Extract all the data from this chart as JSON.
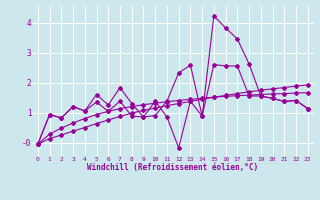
{
  "bg_color": "#cce8ec",
  "line_color": "#990099",
  "grid_color": "#b0d8dc",
  "xlabel": "Windchill (Refroidissement éolien,°C)",
  "ytick_vals": [
    0,
    1,
    2,
    3,
    4
  ],
  "ytick_labels": [
    "-0",
    "1",
    "2",
    "3",
    "4"
  ],
  "ylim": [
    -0.45,
    4.55
  ],
  "xlim": [
    -0.5,
    23.5
  ],
  "xticks": [
    0,
    1,
    2,
    3,
    4,
    5,
    6,
    7,
    8,
    9,
    10,
    11,
    12,
    13,
    14,
    15,
    16,
    17,
    18,
    19,
    20,
    21,
    22,
    23
  ],
  "series1_x": [
    0,
    1,
    2,
    3,
    4,
    5,
    6,
    7,
    8,
    9,
    10,
    11,
    12,
    13,
    14,
    15,
    16,
    17,
    18,
    19,
    20,
    21,
    22,
    23
  ],
  "series1_y": [
    -0.05,
    0.13,
    0.25,
    0.38,
    0.5,
    0.63,
    0.75,
    0.87,
    0.98,
    1.07,
    1.15,
    1.23,
    1.3,
    1.37,
    1.44,
    1.51,
    1.57,
    1.63,
    1.69,
    1.74,
    1.79,
    1.83,
    1.88,
    1.92
  ],
  "series2_x": [
    0,
    1,
    2,
    3,
    4,
    5,
    6,
    7,
    8,
    9,
    10,
    11,
    12,
    13,
    14,
    15,
    16,
    17,
    18,
    19,
    20,
    21,
    22,
    23
  ],
  "series2_y": [
    -0.05,
    0.28,
    0.48,
    0.65,
    0.8,
    0.93,
    1.04,
    1.13,
    1.2,
    1.26,
    1.31,
    1.36,
    1.4,
    1.44,
    1.47,
    1.51,
    1.54,
    1.56,
    1.58,
    1.6,
    1.62,
    1.63,
    1.65,
    1.66
  ],
  "series3_x": [
    0,
    1,
    2,
    3,
    4,
    5,
    6,
    7,
    8,
    9,
    10,
    11,
    12,
    13,
    14,
    15,
    16,
    17,
    18,
    19,
    20,
    21,
    22,
    23
  ],
  "series3_y": [
    -0.05,
    0.93,
    0.82,
    1.2,
    1.05,
    1.6,
    1.25,
    1.83,
    1.3,
    0.85,
    1.38,
    0.85,
    -0.18,
    1.38,
    0.88,
    4.22,
    3.82,
    3.45,
    2.62,
    1.55,
    1.47,
    1.37,
    1.4,
    1.13
  ],
  "series4_x": [
    0,
    1,
    2,
    3,
    4,
    5,
    6,
    7,
    8,
    9,
    10,
    11,
    12,
    13,
    14,
    15,
    16,
    17,
    18,
    19,
    20,
    21,
    22,
    23
  ],
  "series4_y": [
    -0.05,
    0.93,
    0.82,
    1.2,
    1.05,
    1.35,
    1.04,
    1.38,
    0.88,
    0.85,
    0.9,
    1.38,
    2.32,
    2.58,
    0.88,
    2.6,
    2.55,
    2.55,
    1.55,
    1.55,
    1.47,
    1.37,
    1.4,
    1.13
  ]
}
